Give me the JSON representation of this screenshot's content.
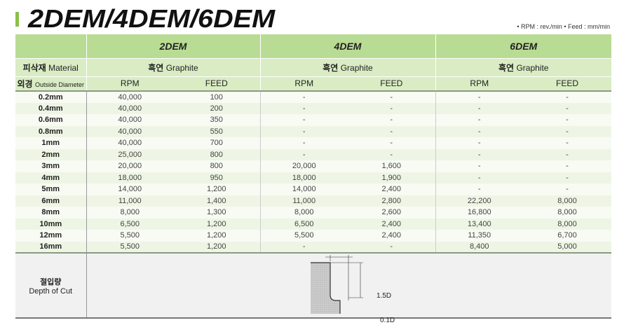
{
  "title": "2DEM/4DEM/6DEM",
  "units": "• RPM : rev./min   • Feed : mm/min",
  "groups": [
    "2DEM",
    "4DEM",
    "6DEM"
  ],
  "material": {
    "label_ko": "피삭재",
    "label_en": "Material",
    "value_ko": "흑연",
    "value_en": "Graphite"
  },
  "diameter": {
    "label_ko": "외경",
    "label_en": "Outside Diameter"
  },
  "col_rpm": "RPM",
  "col_feed": "FEED",
  "rows": [
    [
      "0.2mm",
      "40,000",
      "100",
      "-",
      "-",
      "-",
      "-"
    ],
    [
      "0.4mm",
      "40,000",
      "200",
      "-",
      "-",
      "-",
      "-"
    ],
    [
      "0.6mm",
      "40,000",
      "350",
      "-",
      "-",
      "-",
      "-"
    ],
    [
      "0.8mm",
      "40,000",
      "550",
      "-",
      "-",
      "-",
      "-"
    ],
    [
      "1mm",
      "40,000",
      "700",
      "-",
      "-",
      "-",
      "-"
    ],
    [
      "2mm",
      "25,000",
      "800",
      "-",
      "-",
      "-",
      "-"
    ],
    [
      "3mm",
      "20,000",
      "800",
      "20,000",
      "1,600",
      "-",
      "-"
    ],
    [
      "4mm",
      "18,000",
      "950",
      "18,000",
      "1,900",
      "-",
      "-"
    ],
    [
      "5mm",
      "14,000",
      "1,200",
      "14,000",
      "2,400",
      "-",
      "-"
    ],
    [
      "6mm",
      "11,000",
      "1,400",
      "11,000",
      "2,800",
      "22,200",
      "8,000"
    ],
    [
      "8mm",
      "8,000",
      "1,300",
      "8,000",
      "2,600",
      "16,800",
      "8,000"
    ],
    [
      "10mm",
      "6,500",
      "1,200",
      "6,500",
      "2,400",
      "13,400",
      "8,000"
    ],
    [
      "12mm",
      "5,500",
      "1,200",
      "5,500",
      "2,400",
      "11,350",
      "6,700"
    ],
    [
      "16mm",
      "5,500",
      "1,200",
      "-",
      "-",
      "8,400",
      "5,000"
    ]
  ],
  "depth": {
    "label_ko": "절입량",
    "label_en": "Depth of Cut",
    "width_label": "1.5D",
    "depth_label": "0.1D"
  }
}
